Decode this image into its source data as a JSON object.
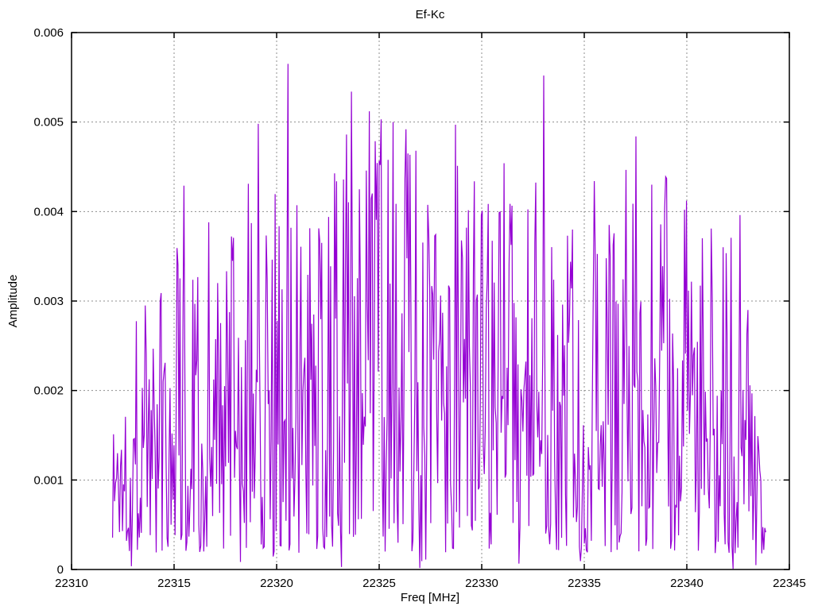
{
  "chart_data": {
    "type": "line",
    "title": "Ef-Kc",
    "xlabel": "Freq [MHz]",
    "ylabel": "Amplitude",
    "xlim": [
      22310,
      22345
    ],
    "ylim": [
      0,
      0.006
    ],
    "xticks": [
      22310,
      22315,
      22320,
      22325,
      22330,
      22335,
      22340,
      22345
    ],
    "xtick_labels": [
      "22310",
      "22315",
      "22320",
      "22325",
      "22330",
      "22335",
      "22340",
      "22345"
    ],
    "yticks": [
      0,
      0.001,
      0.002,
      0.003,
      0.004,
      0.005,
      0.006
    ],
    "ytick_labels": [
      "0",
      "0.001",
      "0.002",
      "0.003",
      "0.004",
      "0.005",
      "0.006"
    ],
    "grid": true,
    "legend": "none",
    "line_color": "#9400D3",
    "grid_color": "#8f8f8f",
    "background": "#ffffff",
    "data_range": [
      22312.0,
      22343.85
    ],
    "envelope": [
      [
        22312.0,
        0.0019
      ],
      [
        22313.0,
        0.0029
      ],
      [
        22314.0,
        0.0031
      ],
      [
        22315.3,
        0.0043
      ],
      [
        22316.2,
        0.0039
      ],
      [
        22317.0,
        0.0032
      ],
      [
        22318.0,
        0.0039
      ],
      [
        22319.0,
        0.005
      ],
      [
        22320.0,
        0.0042
      ],
      [
        22321.0,
        0.0041
      ],
      [
        22322.0,
        0.004
      ],
      [
        22323.0,
        0.0047
      ],
      [
        22324.0,
        0.0051
      ],
      [
        22325.0,
        0.005
      ],
      [
        22326.0,
        0.0049
      ],
      [
        22327.0,
        0.0047
      ],
      [
        22328.0,
        0.004
      ],
      [
        22329.0,
        0.005
      ],
      [
        22330.0,
        0.004
      ],
      [
        22331.0,
        0.0045
      ],
      [
        22332.0,
        0.0042
      ],
      [
        22333.0,
        0.0048
      ],
      [
        22334.0,
        0.0039
      ],
      [
        22335.0,
        0.0043
      ],
      [
        22336.0,
        0.0039
      ],
      [
        22337.0,
        0.0046
      ],
      [
        22338.0,
        0.0043
      ],
      [
        22339.0,
        0.0044
      ],
      [
        22340.0,
        0.0041
      ],
      [
        22341.0,
        0.0038
      ],
      [
        22342.0,
        0.004
      ],
      [
        22343.0,
        0.0029
      ],
      [
        22343.85,
        0.0012
      ]
    ],
    "major_peaks": [
      [
        22320.55,
        0.00565
      ],
      [
        22333.0,
        0.00552
      ],
      [
        22323.65,
        0.00534
      ],
      [
        22324.5,
        0.00512
      ],
      [
        22325.1,
        0.00503
      ],
      [
        22325.7,
        0.005
      ],
      [
        22319.1,
        0.00498
      ],
      [
        22328.7,
        0.00497
      ],
      [
        22326.3,
        0.00492
      ],
      [
        22337.5,
        0.00484
      ],
      [
        22326.8,
        0.00468
      ],
      [
        22331.1,
        0.00454
      ],
      [
        22339.0,
        0.00437
      ],
      [
        22335.5,
        0.00434
      ],
      [
        22318.6,
        0.00431
      ],
      [
        22315.5,
        0.00429
      ],
      [
        22338.3,
        0.0043
      ],
      [
        22340.0,
        0.00412
      ],
      [
        22321.0,
        0.00407
      ],
      [
        22330.0,
        0.00396
      ],
      [
        22342.6,
        0.00396
      ],
      [
        22322.55,
        0.00394
      ],
      [
        22316.7,
        0.00388
      ],
      [
        22336.2,
        0.00385
      ],
      [
        22341.2,
        0.00381
      ],
      [
        22313.6,
        0.00295
      ],
      [
        22314.3,
        0.00299
      ],
      [
        22343.0,
        0.0029
      ]
    ],
    "noise": {
      "seed": 1337,
      "num_points": 660,
      "floor": 0.00018,
      "shape": 1.35,
      "dropout_prob": 0.05
    }
  }
}
